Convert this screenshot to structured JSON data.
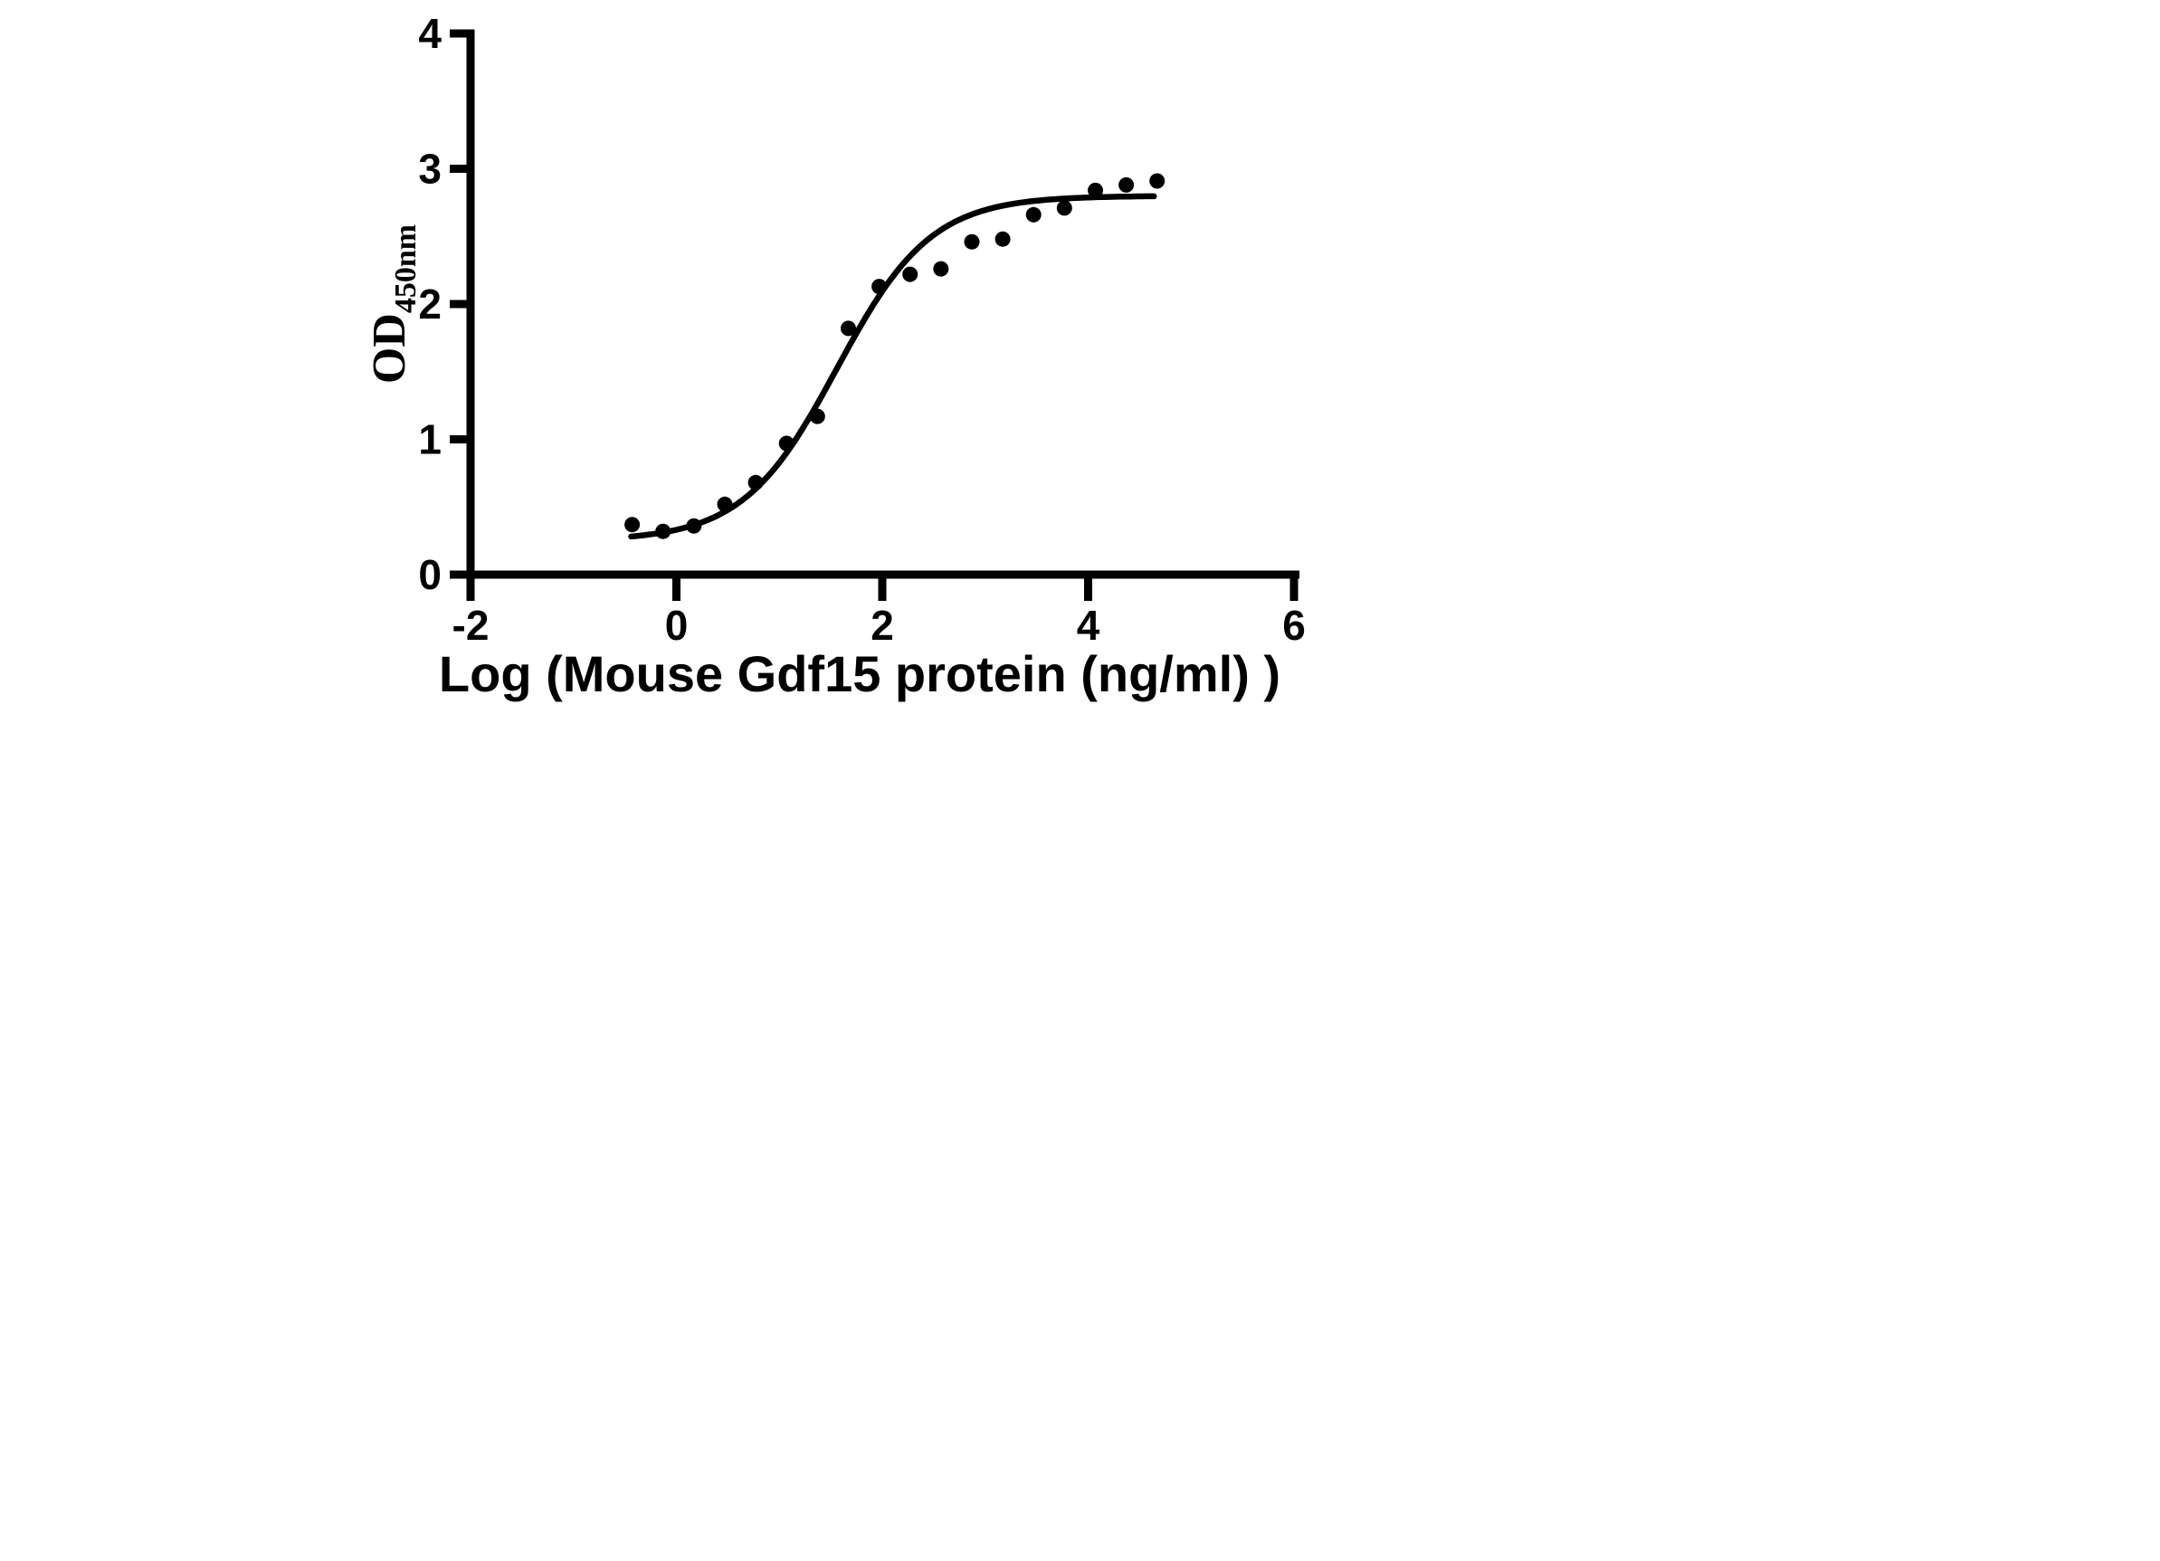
{
  "page": {
    "background": "#ffffff",
    "foreground": "#000000"
  },
  "chart_data": {
    "type": "scatter",
    "title": "",
    "xlabel": "Log (Mouse Gdf15 protein (ng/ml) )",
    "ylabel_main": "OD",
    "ylabel_sub": "450nm",
    "xlim": [
      -2,
      6
    ],
    "ylim": [
      0,
      4
    ],
    "xticks": [
      -2,
      0,
      2,
      4,
      6
    ],
    "yticks": [
      0,
      1,
      2,
      3,
      4
    ],
    "grid": false,
    "legend": "none",
    "axis_color": "#000000",
    "marker": {
      "shape": "circle",
      "color": "#000000",
      "radius_px": 8.5
    },
    "curve_color": "#000000",
    "points": [
      {
        "x": -0.43,
        "y": 0.37
      },
      {
        "x": -0.13,
        "y": 0.32
      },
      {
        "x": 0.17,
        "y": 0.36
      },
      {
        "x": 0.47,
        "y": 0.52
      },
      {
        "x": 0.77,
        "y": 0.68
      },
      {
        "x": 1.07,
        "y": 0.97
      },
      {
        "x": 1.37,
        "y": 1.17
      },
      {
        "x": 1.67,
        "y": 1.82
      },
      {
        "x": 1.97,
        "y": 2.13
      },
      {
        "x": 2.27,
        "y": 2.22
      },
      {
        "x": 2.57,
        "y": 2.26
      },
      {
        "x": 2.87,
        "y": 2.46
      },
      {
        "x": 3.17,
        "y": 2.48
      },
      {
        "x": 3.47,
        "y": 2.66
      },
      {
        "x": 3.77,
        "y": 2.71
      },
      {
        "x": 4.07,
        "y": 2.84
      },
      {
        "x": 4.37,
        "y": 2.88
      },
      {
        "x": 4.67,
        "y": 2.91
      }
    ],
    "fit_curve": {
      "model": "4PL sigmoid",
      "bottom": 0.25,
      "top": 2.8,
      "logEC50": 1.56,
      "hill": 0.95,
      "x_start": -0.44,
      "x_end": 4.66
    }
  }
}
